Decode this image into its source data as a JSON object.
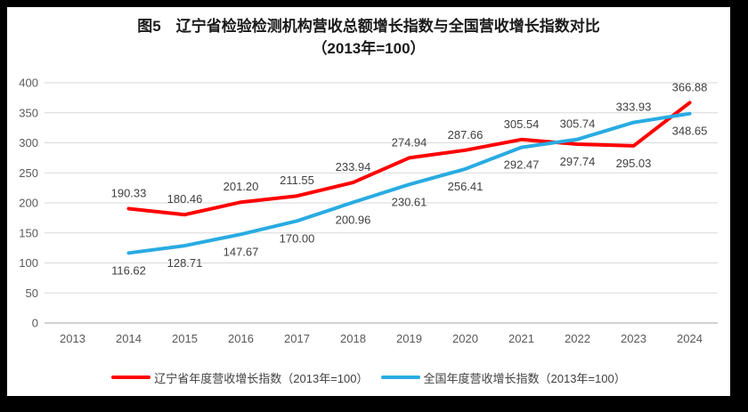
{
  "page": {
    "background": "#FFFFFF",
    "border_color": "#000000"
  },
  "chart_data": {
    "type": "line",
    "title": "图5　辽宁省检验检测机构营收总额增长指数与全国营收增长指数对比",
    "subtitle": "（2013年=100）",
    "categories": [
      "2013",
      "2014",
      "2015",
      "2016",
      "2017",
      "2018",
      "2019",
      "2020",
      "2021",
      "2022",
      "2023",
      "2024"
    ],
    "ylim": [
      0,
      400
    ],
    "y_ticks": [
      0,
      50,
      100,
      150,
      200,
      250,
      300,
      350,
      400
    ],
    "grid": true,
    "legend_position": "bottom",
    "grid_color": "#D9D9D9",
    "axis_line_color": "#C3C3C3",
    "axis_text_color": "#595959",
    "data_label_color": "#404040",
    "series": [
      {
        "name": "辽宁省年度营收增长指数（2013年=100）",
        "color": "#FF0000",
        "x_start_index": 1,
        "values": [
          190.33,
          180.46,
          201.2,
          211.55,
          233.94,
          274.94,
          287.66,
          305.54,
          297.74,
          295.03,
          366.88
        ],
        "labels": [
          "190.33",
          "180.46",
          "201.20",
          "211.55",
          "233.94",
          "274.94",
          "287.66",
          "305.54",
          "297.74",
          "295.03",
          "366.88"
        ],
        "label_positions": [
          "above",
          "above",
          "above",
          "above",
          "above",
          "above",
          "above",
          "above",
          "below",
          "below",
          "above"
        ]
      },
      {
        "name": "全国年度营收增长指数（2013年=100）",
        "color": "#29ABE2",
        "x_start_index": 1,
        "values": [
          116.62,
          128.71,
          147.67,
          170.0,
          200.96,
          230.61,
          256.41,
          292.47,
          305.74,
          333.93,
          348.65
        ],
        "labels": [
          "116.62",
          "128.71",
          "147.67",
          "170.00",
          "200.96",
          "230.61",
          "256.41",
          "292.47",
          "305.74",
          "333.93",
          "348.65"
        ],
        "label_positions": [
          "below",
          "below",
          "below",
          "below",
          "below",
          "below",
          "below",
          "below",
          "above",
          "above",
          "below"
        ]
      }
    ]
  }
}
